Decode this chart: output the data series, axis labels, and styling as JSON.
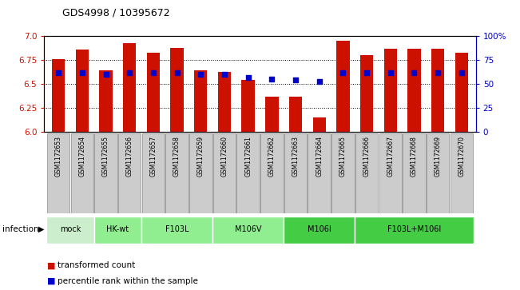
{
  "title": "GDS4998 / 10395672",
  "samples": [
    "GSM1172653",
    "GSM1172654",
    "GSM1172655",
    "GSM1172656",
    "GSM1172657",
    "GSM1172658",
    "GSM1172659",
    "GSM1172660",
    "GSM1172661",
    "GSM1172662",
    "GSM1172663",
    "GSM1172664",
    "GSM1172665",
    "GSM1172666",
    "GSM1172667",
    "GSM1172668",
    "GSM1172669",
    "GSM1172670"
  ],
  "bar_values": [
    6.76,
    6.86,
    6.64,
    6.93,
    6.83,
    6.88,
    6.64,
    6.63,
    6.54,
    6.37,
    6.37,
    6.15,
    6.95,
    6.8,
    6.87,
    6.87,
    6.87,
    6.83
  ],
  "percentile_values": [
    62,
    62,
    60,
    62,
    62,
    62,
    60,
    60,
    57,
    55,
    54,
    53,
    62,
    62,
    62,
    62,
    62,
    62
  ],
  "ylim_left": [
    6.0,
    7.0
  ],
  "ylim_right": [
    0,
    100
  ],
  "yticks_left": [
    6.0,
    6.25,
    6.5,
    6.75,
    7.0
  ],
  "yticks_right": [
    0,
    25,
    50,
    75,
    100
  ],
  "ytick_labels_right": [
    "0",
    "25",
    "50",
    "75",
    "100%"
  ],
  "bar_color": "#CC1100",
  "marker_color": "#0000CC",
  "groups": [
    {
      "label": "mock",
      "start": 0,
      "end": 2,
      "color": "#cceecc"
    },
    {
      "label": "HK-wt",
      "start": 2,
      "end": 4,
      "color": "#90ee90"
    },
    {
      "label": "F103L",
      "start": 4,
      "end": 7,
      "color": "#90ee90"
    },
    {
      "label": "M106V",
      "start": 7,
      "end": 10,
      "color": "#90ee90"
    },
    {
      "label": "M106I",
      "start": 10,
      "end": 13,
      "color": "#44cc44"
    },
    {
      "label": "F103L+M106I",
      "start": 13,
      "end": 18,
      "color": "#44cc44"
    }
  ],
  "infection_label": "infection",
  "legend_items": [
    {
      "label": "transformed count",
      "color": "#CC1100"
    },
    {
      "label": "percentile rank within the sample",
      "color": "#0000CC"
    }
  ],
  "bar_width": 0.55,
  "bg_color": "#ffffff",
  "left_tick_color": "#CC1100",
  "right_tick_color": "#0000CC",
  "sample_box_color": "#cccccc",
  "sample_box_edge": "#888888"
}
